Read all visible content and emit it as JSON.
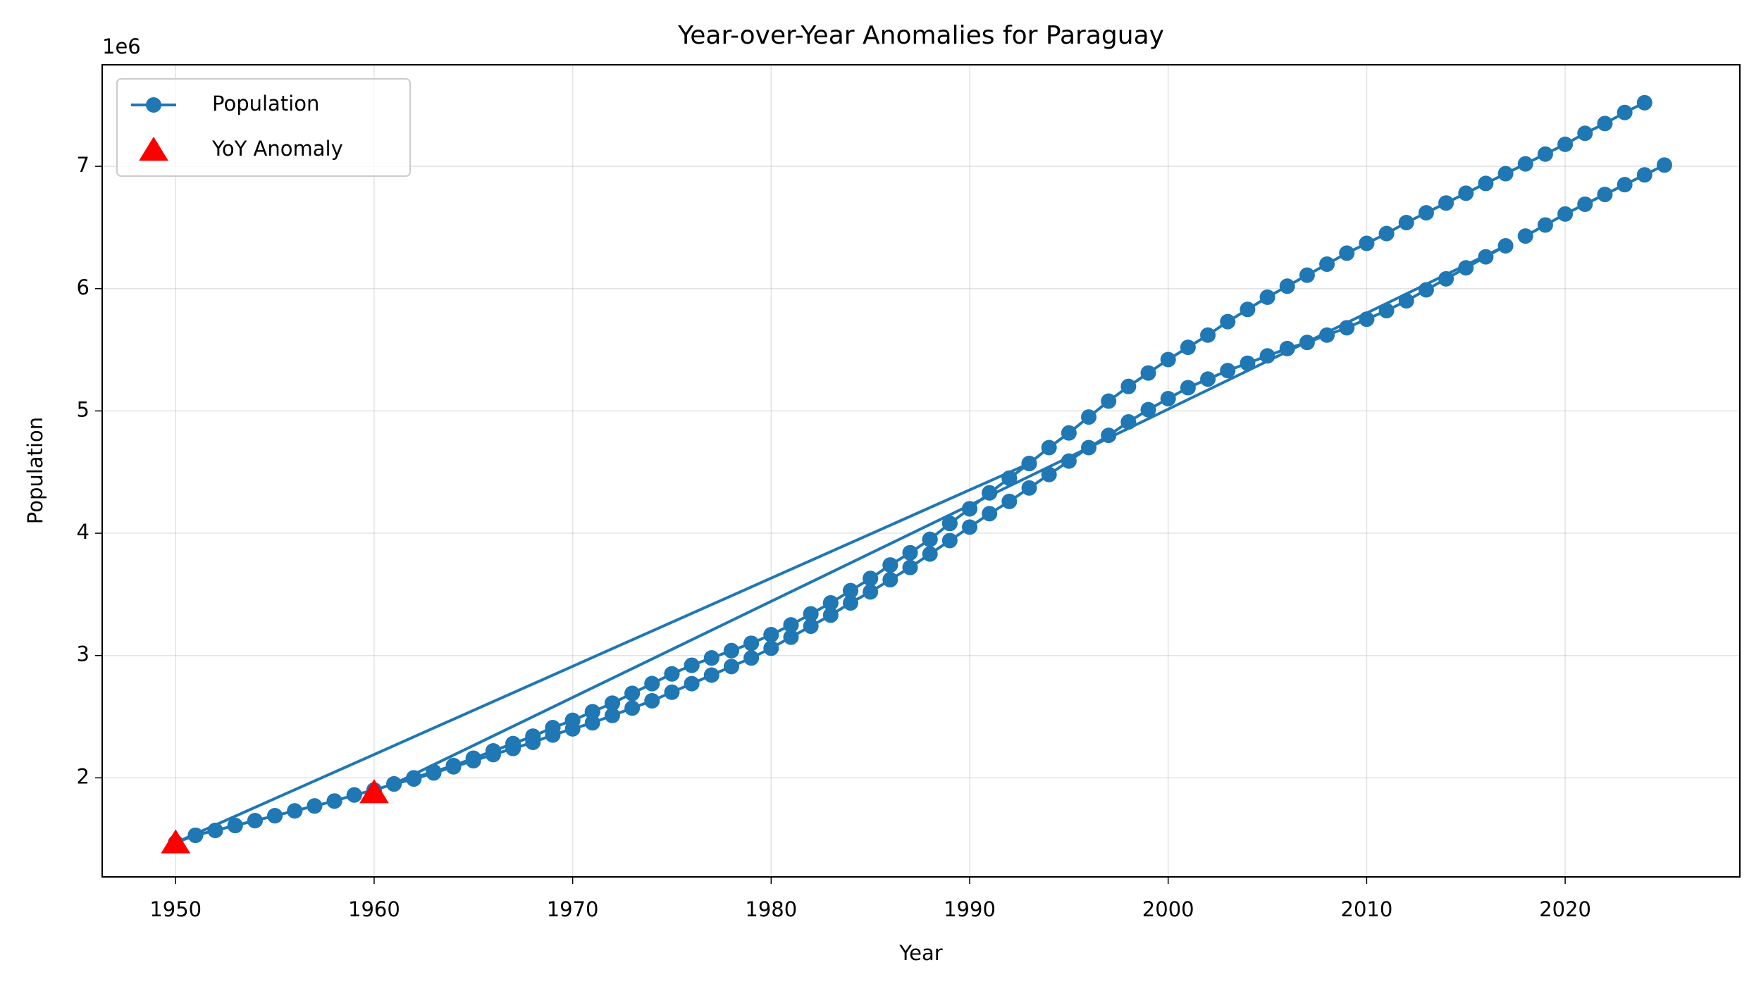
{
  "chart_data": {
    "type": "line",
    "title": "Year-over-Year Anomalies for Paraguay",
    "x_label": "Year",
    "y_label": "Population",
    "y_offset_label": "1e6",
    "xlim": [
      1946.3,
      2028.8
    ],
    "ylim": [
      1190000,
      7830000
    ],
    "xticks": [
      1950,
      1960,
      1970,
      1980,
      1990,
      2000,
      2010,
      2020
    ],
    "yticks": [
      {
        "value": 2000000,
        "label": "2"
      },
      {
        "value": 3000000,
        "label": "3"
      },
      {
        "value": 4000000,
        "label": "4"
      },
      {
        "value": 5000000,
        "label": "5"
      },
      {
        "value": 6000000,
        "label": "6"
      },
      {
        "value": 7000000,
        "label": "7"
      }
    ],
    "grid": true,
    "legend": "upper left",
    "series": [
      {
        "name": "Population",
        "color": "#1f77b4",
        "marker": "circle",
        "line": true,
        "x": [
          1950,
          1951,
          1952,
          1953,
          1954,
          1955,
          1956,
          1957,
          1958,
          1959,
          1960,
          1961,
          1962,
          1963,
          1964,
          1965,
          1966,
          1967,
          1968,
          1969,
          1970,
          1971,
          1972,
          1973,
          1974,
          1975,
          1976,
          1977,
          1978,
          1979,
          1980,
          1981,
          1982,
          1983,
          1984,
          1985,
          1986,
          1987,
          1988,
          1989,
          1990,
          1991,
          1992,
          1993,
          1950,
          1951,
          1952,
          1953,
          1954,
          1955,
          1956,
          1957,
          1958,
          1959,
          1960,
          1961,
          1962,
          1963,
          1964,
          1965,
          1966,
          1967,
          1968,
          1969,
          1970,
          1971,
          1972,
          1973,
          1974,
          1975,
          1976,
          1977,
          1978,
          1979,
          1980,
          1981,
          1982,
          1983,
          1984,
          1985,
          1986,
          1987,
          1988,
          1989,
          1990,
          1991,
          1992,
          1993,
          1994,
          1995,
          1996,
          1997,
          1998,
          1999,
          2000,
          2001,
          2002,
          2003,
          2004,
          2005,
          2006,
          2007,
          2008,
          2009,
          2010,
          2011,
          2012,
          2013,
          2014,
          2015,
          2016,
          2017,
          1961,
          1962,
          1963,
          1964,
          1965,
          1966,
          1967,
          1968,
          1969,
          1970,
          1971,
          1972,
          1973,
          1974,
          1975,
          1976,
          1977,
          1978,
          1979,
          1980,
          1981,
          1982,
          1983,
          1984,
          1985,
          1986,
          1987,
          1988,
          1989,
          1990,
          1991,
          1992,
          1993,
          1994,
          1995,
          1996,
          1997,
          1998,
          1999,
          2000,
          2001,
          2002,
          2003,
          2004,
          2005,
          2006,
          2007,
          2008,
          2009,
          2010,
          2011,
          2012,
          2013,
          2014,
          2015,
          2016,
          2017,
          2018,
          2019,
          2020,
          2021,
          2022,
          2023,
          2024,
          null,
          2018,
          2019,
          2020,
          2021,
          2022,
          2023,
          2024,
          2025
        ],
        "values": [
          1470000,
          1530000,
          1570000,
          1610000,
          1650000,
          1690000,
          1730000,
          1770000,
          1810000,
          1860000,
          1900000,
          1950000,
          2000000,
          2050000,
          2100000,
          2160000,
          2220000,
          2280000,
          2340000,
          2410000,
          2470000,
          2540000,
          2610000,
          2690000,
          2770000,
          2850000,
          2920000,
          2980000,
          3040000,
          3100000,
          3170000,
          3250000,
          3340000,
          3430000,
          3530000,
          3630000,
          3740000,
          3840000,
          3950000,
          4080000,
          4200000,
          4330000,
          4450000,
          4570000,
          1470000,
          1530000,
          1570000,
          1610000,
          1650000,
          1690000,
          1730000,
          1770000,
          1810000,
          1860000,
          1900000,
          1950000,
          1990000,
          2040000,
          2090000,
          2140000,
          2190000,
          2240000,
          2290000,
          2350000,
          2400000,
          2450000,
          2510000,
          2570000,
          2630000,
          2700000,
          2770000,
          2840000,
          2910000,
          2980000,
          3060000,
          3150000,
          3240000,
          3330000,
          3430000,
          3520000,
          3620000,
          3720000,
          3830000,
          3940000,
          4050000,
          4160000,
          4260000,
          4370000,
          4480000,
          4590000,
          4700000,
          4800000,
          4910000,
          5010000,
          5100000,
          5190000,
          5260000,
          5330000,
          5390000,
          5450000,
          5510000,
          5560000,
          5620000,
          5680000,
          5750000,
          5820000,
          5900000,
          5990000,
          6080000,
          6170000,
          6260000,
          6350000,
          1950000,
          2000000,
          2050000,
          2100000,
          2160000,
          2220000,
          2280000,
          2340000,
          2410000,
          2470000,
          2540000,
          2610000,
          2690000,
          2770000,
          2850000,
          2920000,
          2980000,
          3040000,
          3100000,
          3170000,
          3250000,
          3340000,
          3430000,
          3530000,
          3630000,
          3740000,
          3840000,
          3950000,
          4080000,
          4200000,
          4330000,
          4450000,
          4570000,
          4700000,
          4820000,
          4950000,
          5080000,
          5200000,
          5310000,
          5420000,
          5520000,
          5620000,
          5730000,
          5830000,
          5930000,
          6020000,
          6110000,
          6200000,
          6290000,
          6370000,
          6450000,
          6540000,
          6620000,
          6700000,
          6780000,
          6860000,
          6940000,
          7020000,
          7100000,
          7180000,
          7270000,
          7350000,
          7440000,
          7520000,
          null,
          6430000,
          6520000,
          6610000,
          6690000,
          6770000,
          6850000,
          6930000,
          7010000
        ]
      },
      {
        "name": "YoY Anomaly",
        "color": "#ff0000",
        "marker": "triangle",
        "line": false,
        "x": [
          1950,
          1960
        ],
        "values": [
          1470000,
          1880000
        ]
      }
    ]
  }
}
